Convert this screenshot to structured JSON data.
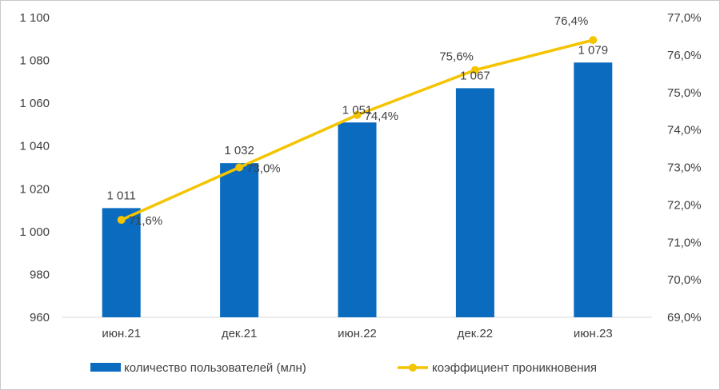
{
  "chart_data": {
    "type": "bar",
    "title": "",
    "categories": [
      "июн.21",
      "дек.21",
      "июн.22",
      "дек.22",
      "июн.23"
    ],
    "series": [
      {
        "name": "количество пользователей (млн)",
        "type": "bar",
        "axis": "left",
        "values": [
          1011,
          1032,
          1051,
          1067,
          1079
        ],
        "labels": [
          "1 011",
          "1 032",
          "1 051",
          "1 067",
          "1 079"
        ],
        "color": "#0a6bbf"
      },
      {
        "name": "коэффициент проникновения",
        "type": "line",
        "axis": "right",
        "values": [
          71.6,
          73.0,
          74.4,
          75.6,
          76.4
        ],
        "labels": [
          "71,6%",
          "73,0%",
          "74,4%",
          "75,6%",
          "76,4%"
        ],
        "color": "#f5c400"
      }
    ],
    "y_left": {
      "min": 960,
      "max": 1100,
      "step": 20,
      "tick_labels": [
        "960",
        "980",
        "1 000",
        "1 020",
        "1 040",
        "1 060",
        "1 080",
        "1 100"
      ]
    },
    "y_right": {
      "min": 69.0,
      "max": 77.0,
      "step": 1.0,
      "tick_labels": [
        "69,0%",
        "70,0%",
        "71,0%",
        "72,0%",
        "73,0%",
        "74,0%",
        "75,0%",
        "76,0%",
        "77,0%"
      ]
    },
    "grid": false,
    "legend": "bottom"
  }
}
